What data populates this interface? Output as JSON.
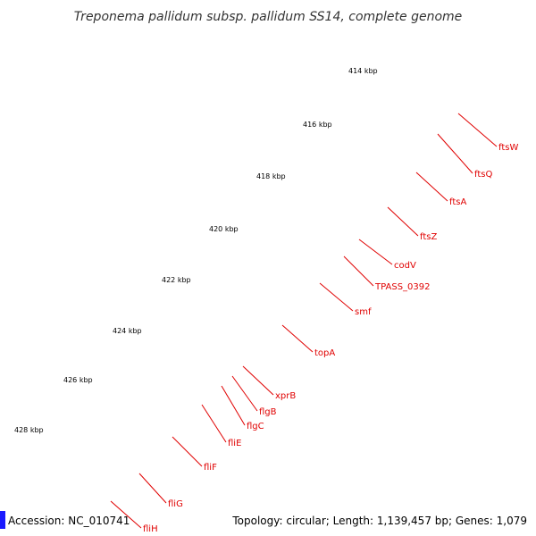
{
  "map": {
    "title": "Treponema pallidum subsp. pallidum SS14, complete genome",
    "accession": "Accession: NC_010741",
    "summary": "Topology: circular; Length: 1,139,457 bp; Genes: 1,079",
    "colors": {
      "backbone": "#8c8c8c",
      "forward_cds": "#ff0000",
      "reverse_tint": "#e8e8a0",
      "olive": "#6b8e23",
      "green": "#228b22",
      "lime": "#adff2f",
      "magenta": "#ff1493",
      "gray": "#c0c0c0",
      "khaki": "#f0e68c",
      "label": "#e00000",
      "tick": "#2e8b2e"
    },
    "ticks": [
      "414 kbp",
      "416 kbp",
      "418 kbp",
      "420 kbp",
      "422 kbp",
      "424 kbp",
      "426 kbp",
      "428 kbp"
    ],
    "genes": [
      {
        "label": "ftsW"
      },
      {
        "label": "ftsQ"
      },
      {
        "label": "ftsA"
      },
      {
        "label": "ftsZ"
      },
      {
        "label": "codV"
      },
      {
        "label": "TPASS_0392"
      },
      {
        "label": "smf"
      },
      {
        "label": "topA"
      },
      {
        "label": "xprB"
      },
      {
        "label": "flgB"
      },
      {
        "label": "flgC"
      },
      {
        "label": "fliE"
      },
      {
        "label": "fliF"
      },
      {
        "label": "fliG"
      },
      {
        "label": "fliH"
      }
    ]
  }
}
